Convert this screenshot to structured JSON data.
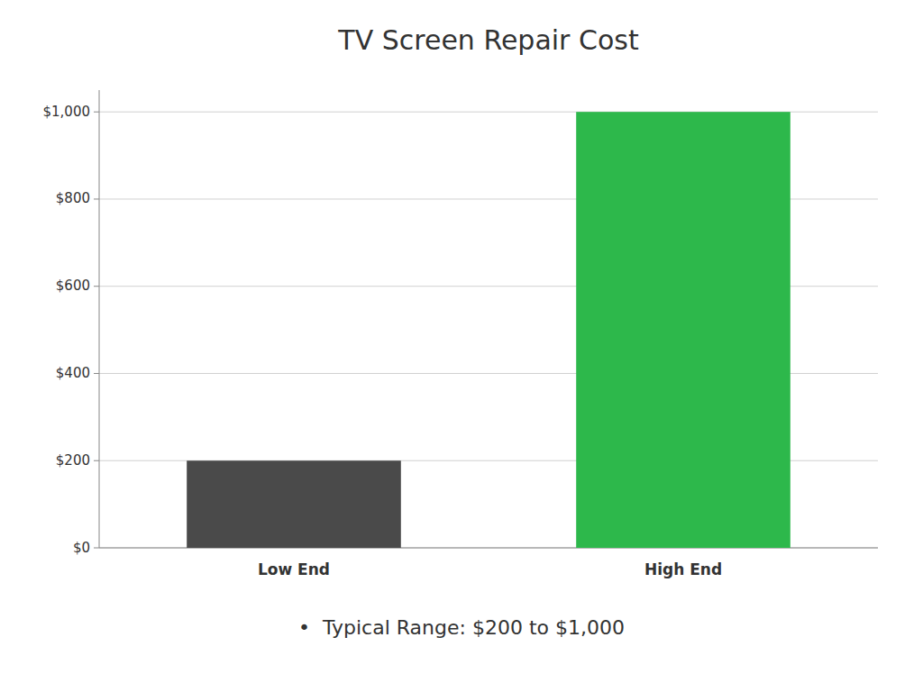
{
  "chart_data": {
    "type": "bar",
    "title": "TV Screen Repair Cost",
    "categories": [
      "Low End",
      "High End"
    ],
    "values": [
      200,
      1000
    ],
    "colors": [
      "#4a4a4a",
      "#2db84b"
    ],
    "ylim": [
      0,
      1050
    ],
    "yticks": [
      {
        "value": 0,
        "label": "$0"
      },
      {
        "value": 200,
        "label": "$200"
      },
      {
        "value": 400,
        "label": "$400"
      },
      {
        "value": 600,
        "label": "$600"
      },
      {
        "value": 800,
        "label": "$800"
      },
      {
        "value": 1000,
        "label": "$1,000"
      }
    ],
    "grid": true,
    "annotation": "•  Typical Range: $200 to $1,000"
  }
}
